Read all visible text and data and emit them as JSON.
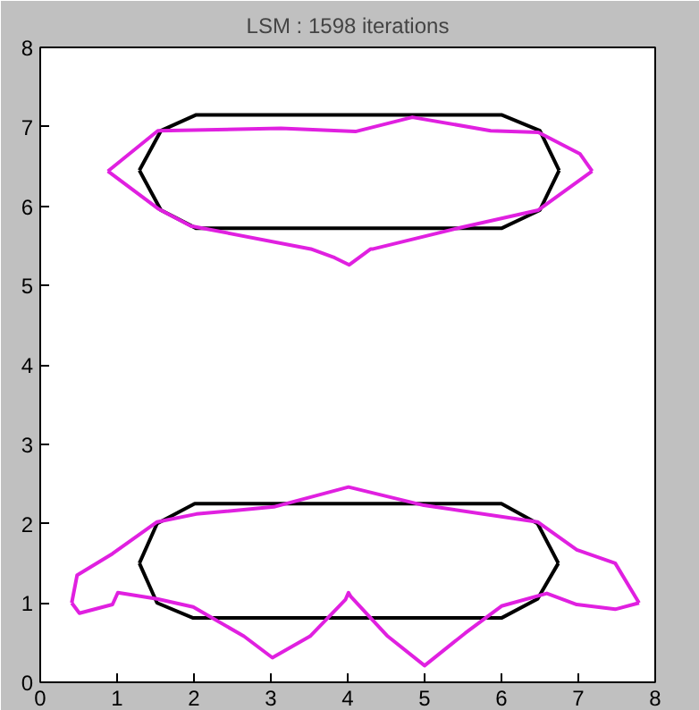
{
  "chart_data": {
    "type": "line",
    "title": "LSM : 1598 iterations",
    "xlim": [
      0,
      8
    ],
    "ylim": [
      0,
      8
    ],
    "xticks": [
      0,
      1,
      2,
      3,
      4,
      5,
      6,
      7,
      8
    ],
    "yticks": [
      0,
      1,
      2,
      3,
      4,
      5,
      6,
      7,
      8
    ],
    "grid": false,
    "marker": "none",
    "line_style": "solid",
    "series": [
      {
        "color": "#000000",
        "x": [
          1.29,
          1.57,
          2.03,
          6.0,
          6.5,
          6.75
        ],
        "values": [
          6.45,
          6.95,
          7.15,
          7.15,
          6.95,
          6.45
        ]
      },
      {
        "color": "#000000",
        "x": [
          1.29,
          1.57,
          2.03,
          6.0,
          6.5,
          6.75
        ],
        "values": [
          6.45,
          5.95,
          5.72,
          5.72,
          5.95,
          6.45
        ]
      },
      {
        "color": "#e020e0",
        "x": [
          0.88,
          1.53,
          3.13,
          4.1,
          4.84,
          5.86,
          6.48,
          7.02,
          7.18
        ],
        "values": [
          6.44,
          6.95,
          6.98,
          6.94,
          7.12,
          6.95,
          6.93,
          6.66,
          6.44
        ]
      },
      {
        "color": "#e020e0",
        "x": [
          0.88,
          1.53,
          1.96,
          3.52,
          3.83,
          4.02,
          4.3,
          4.33,
          5.47,
          6.48,
          7.18
        ],
        "values": [
          6.44,
          5.97,
          5.75,
          5.46,
          5.35,
          5.26,
          5.46,
          5.46,
          5.73,
          5.95,
          6.44
        ]
      },
      {
        "color": "#000000",
        "x": [
          1.29,
          1.52,
          2.01,
          6.0,
          6.47,
          6.74
        ],
        "values": [
          1.5,
          2.0,
          2.25,
          2.25,
          2.0,
          1.5
        ]
      },
      {
        "color": "#000000",
        "x": [
          1.29,
          1.52,
          1.99,
          6.0,
          6.47,
          6.74
        ],
        "values": [
          1.5,
          1.0,
          0.81,
          0.81,
          1.05,
          1.5
        ]
      },
      {
        "color": "#e020e0",
        "x": [
          0.41,
          0.48,
          0.94,
          1.52,
          2.03,
          3.04,
          4.01,
          4.99,
          6.47,
          6.98,
          7.48,
          7.79
        ],
        "values": [
          1.0,
          1.35,
          1.62,
          2.02,
          2.12,
          2.21,
          2.46,
          2.23,
          2.02,
          1.67,
          1.5,
          1.0
        ]
      },
      {
        "color": "#e020e0",
        "x": [
          0.41,
          0.51,
          0.94,
          1.01,
          1.52,
          1.99,
          2.65,
          3.02,
          3.51,
          3.97,
          4.01,
          4.04,
          4.52,
          5.0,
          5.53,
          6.0,
          6.59,
          6.98,
          7.48,
          7.79
        ],
        "values": [
          1.0,
          0.87,
          0.98,
          1.13,
          1.05,
          0.95,
          0.58,
          0.31,
          0.58,
          1.04,
          1.13,
          1.08,
          0.58,
          0.21,
          0.62,
          0.96,
          1.12,
          0.98,
          0.92,
          1.0
        ]
      }
    ]
  }
}
